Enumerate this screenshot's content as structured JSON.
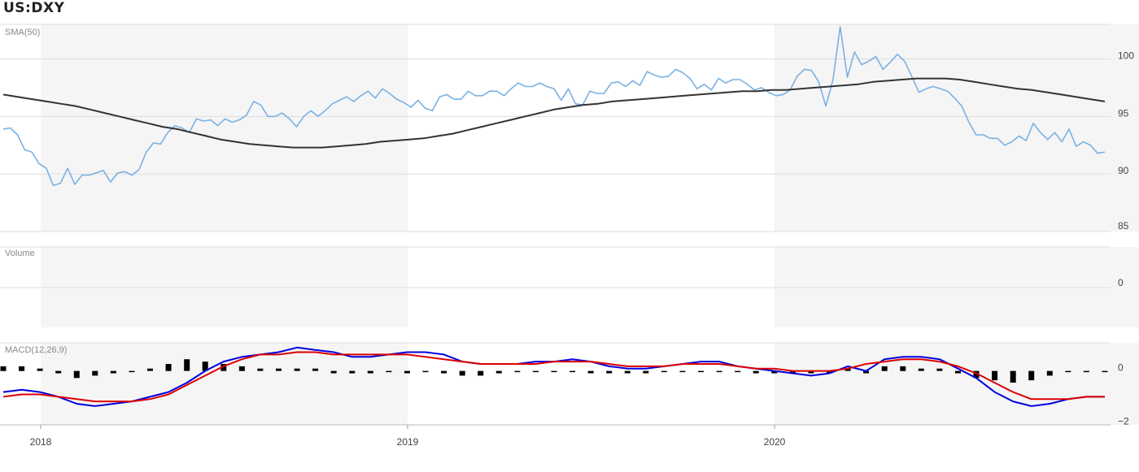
{
  "symbol": "US:DXY",
  "colors": {
    "price": "#7ab1e3",
    "sma": "#333333",
    "macd": "#0000dd",
    "signal": "#dd0000",
    "histogram": "#000000",
    "shade": "#f5f5f5",
    "grid": "#dddddd"
  },
  "panels": {
    "price_label": "SMA(50)",
    "volume_label": "Volume",
    "macd_label": "MACD(12,26,9)"
  },
  "chart_data": [
    {
      "type": "line",
      "title": "",
      "panel": "price",
      "label": "SMA(50)",
      "x_labels": [
        "2018",
        "2019",
        "2020"
      ],
      "ylim": [
        85,
        103
      ],
      "y_ticks": [
        85,
        90,
        95,
        100
      ],
      "grid": true,
      "shaded_years": [
        "2018",
        "2020"
      ],
      "series": [
        {
          "name": "",
          "role": "price",
          "values": [
            93.9,
            94.0,
            93.4,
            92.1,
            91.9,
            90.9,
            90.5,
            89.0,
            89.2,
            90.5,
            89.1,
            89.9,
            89.9,
            90.1,
            90.3,
            89.3,
            90.1,
            90.2,
            89.9,
            90.4,
            91.9,
            92.7,
            92.6,
            93.6,
            94.2,
            94.0,
            93.6,
            94.8,
            94.6,
            94.7,
            94.2,
            94.8,
            94.5,
            94.7,
            95.1,
            96.3,
            96.0,
            95.0,
            95.0,
            95.3,
            94.8,
            94.1,
            95.0,
            95.5,
            95.0,
            95.5,
            96.1,
            96.4,
            96.7,
            96.3,
            96.8,
            97.2,
            96.6,
            97.4,
            97.0,
            96.5,
            96.2,
            95.8,
            96.4,
            95.7,
            95.5,
            96.7,
            96.9,
            96.5,
            96.5,
            97.2,
            96.8,
            96.8,
            97.2,
            97.2,
            96.8,
            97.4,
            97.9,
            97.6,
            97.6,
            97.9,
            97.6,
            97.4,
            96.4,
            97.4,
            96.1,
            96.0,
            97.2,
            97.0,
            97.0,
            97.9,
            98.0,
            97.6,
            98.1,
            97.7,
            98.9,
            98.6,
            98.4,
            98.5,
            99.1,
            98.8,
            98.3,
            97.4,
            97.8,
            97.3,
            98.3,
            97.9,
            98.2,
            98.2,
            97.8,
            97.3,
            97.5,
            97.1,
            96.8,
            96.9,
            97.3,
            98.5,
            99.1,
            99.0,
            98.0,
            95.9,
            98.2,
            102.8,
            98.4,
            100.6,
            99.5,
            99.8,
            100.2,
            99.1,
            99.7,
            100.4,
            99.8,
            98.5,
            97.1,
            97.4,
            97.6,
            97.4,
            97.2,
            96.6,
            95.9,
            94.5,
            93.4,
            93.4,
            93.1,
            93.1,
            92.5,
            92.8,
            93.3,
            92.9,
            94.4,
            93.6,
            93.0,
            93.6,
            92.8,
            93.9,
            92.4,
            92.8,
            92.5,
            91.8,
            91.9
          ],
          "color": "#7ab1e3"
        },
        {
          "name": "",
          "role": "sma",
          "values": [
            96.9,
            96.7,
            96.5,
            96.3,
            96.1,
            95.9,
            95.6,
            95.3,
            95.0,
            94.7,
            94.4,
            94.1,
            93.9,
            93.6,
            93.3,
            93.0,
            92.8,
            92.6,
            92.5,
            92.4,
            92.3,
            92.3,
            92.3,
            92.4,
            92.5,
            92.6,
            92.8,
            92.9,
            93.0,
            93.1,
            93.3,
            93.5,
            93.8,
            94.1,
            94.4,
            94.7,
            95.0,
            95.3,
            95.6,
            95.8,
            96.0,
            96.1,
            96.3,
            96.4,
            96.5,
            96.6,
            96.7,
            96.8,
            96.9,
            97.0,
            97.1,
            97.2,
            97.2,
            97.3,
            97.3,
            97.4,
            97.5,
            97.6,
            97.7,
            97.8,
            98.0,
            98.1,
            98.2,
            98.3,
            98.3,
            98.3,
            98.2,
            98.0,
            97.8,
            97.6,
            97.4,
            97.3,
            97.1,
            96.9,
            96.7,
            96.5,
            96.3
          ],
          "color": "#333333"
        }
      ]
    },
    {
      "type": "bar",
      "panel": "volume",
      "label": "Volume",
      "y_ticks": [
        0
      ],
      "values": []
    },
    {
      "type": "line",
      "panel": "macd",
      "label": "MACD(12,26,9)",
      "ylim": [
        -2.3,
        1.2
      ],
      "y_ticks": [
        0,
        -2
      ],
      "series": [
        {
          "name": "",
          "role": "macd",
          "values": [
            -0.9,
            -0.8,
            -0.9,
            -1.1,
            -1.4,
            -1.5,
            -1.4,
            -1.3,
            -1.1,
            -0.9,
            -0.5,
            0.0,
            0.4,
            0.6,
            0.7,
            0.8,
            1.0,
            0.9,
            0.8,
            0.6,
            0.6,
            0.7,
            0.8,
            0.8,
            0.7,
            0.4,
            0.3,
            0.3,
            0.3,
            0.4,
            0.4,
            0.5,
            0.4,
            0.2,
            0.1,
            0.1,
            0.2,
            0.3,
            0.4,
            0.4,
            0.2,
            0.1,
            0.0,
            -0.1,
            -0.2,
            -0.1,
            0.2,
            0.0,
            0.5,
            0.6,
            0.6,
            0.5,
            0.1,
            -0.3,
            -0.9,
            -1.3,
            -1.5,
            -1.4,
            -1.2,
            -1.1,
            -1.1
          ],
          "color": "#0000dd"
        },
        {
          "name": "",
          "role": "signal",
          "values": [
            -1.1,
            -1.0,
            -1.0,
            -1.1,
            -1.2,
            -1.3,
            -1.3,
            -1.3,
            -1.2,
            -1.0,
            -0.6,
            -0.2,
            0.2,
            0.5,
            0.7,
            0.7,
            0.8,
            0.8,
            0.7,
            0.7,
            0.7,
            0.7,
            0.7,
            0.6,
            0.5,
            0.4,
            0.3,
            0.3,
            0.3,
            0.3,
            0.4,
            0.4,
            0.4,
            0.3,
            0.2,
            0.2,
            0.2,
            0.3,
            0.3,
            0.3,
            0.2,
            0.1,
            0.1,
            0.0,
            0.0,
            0.0,
            0.1,
            0.3,
            0.4,
            0.5,
            0.5,
            0.4,
            0.2,
            -0.1,
            -0.5,
            -0.9,
            -1.2,
            -1.2,
            -1.2,
            -1.1,
            -1.1
          ],
          "color": "#dd0000"
        },
        {
          "name": "",
          "role": "histogram",
          "values": [
            0.2,
            0.2,
            0.1,
            -0.1,
            -0.3,
            -0.2,
            -0.1,
            0.0,
            0.1,
            0.3,
            0.5,
            0.4,
            0.3,
            0.2,
            0.1,
            0.1,
            0.1,
            0.1,
            -0.1,
            -0.1,
            -0.1,
            0.0,
            -0.1,
            0.0,
            -0.1,
            -0.2,
            -0.2,
            -0.1,
            0.0,
            0.0,
            0.0,
            0.0,
            -0.1,
            -0.1,
            -0.1,
            -0.1,
            0.0,
            0.0,
            0.0,
            0.0,
            0.0,
            -0.1,
            -0.1,
            -0.1,
            -0.1,
            -0.1,
            0.1,
            -0.1,
            0.2,
            0.2,
            0.1,
            0.1,
            -0.1,
            -0.3,
            -0.4,
            -0.5,
            -0.4,
            -0.2,
            0.0,
            0.0,
            0.0
          ],
          "color": "#000000"
        }
      ]
    }
  ]
}
